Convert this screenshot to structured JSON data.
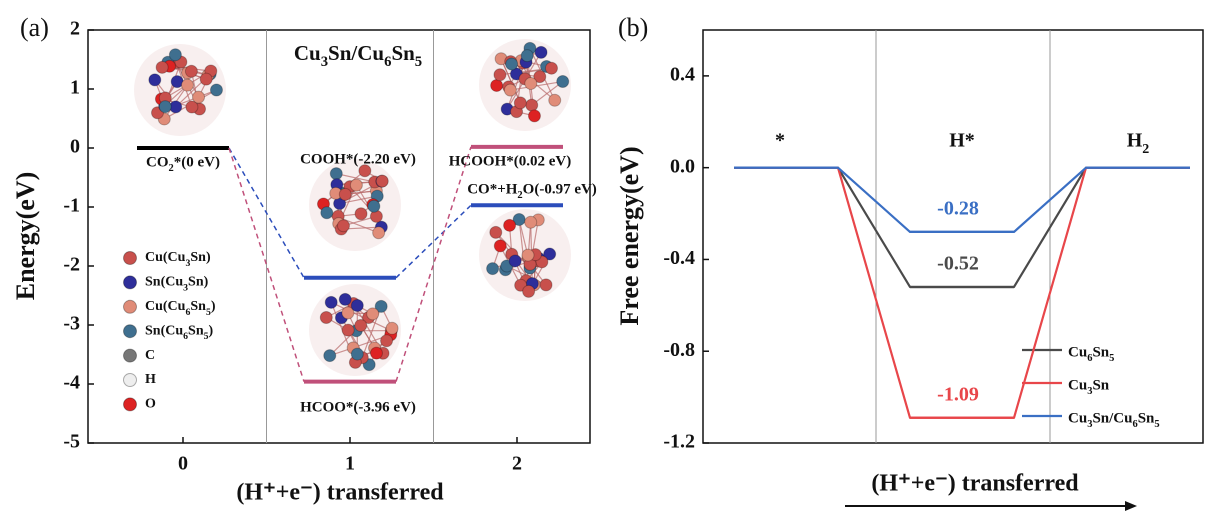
{
  "chart_data": [
    {
      "type": "energy-diagram",
      "panel_label": "(a)",
      "title": "Cu3Sn/Cu6Sn5",
      "x_label": "(H⁺+e⁻) transferred",
      "y_label": "Energy(eV)",
      "categories": [
        "0",
        "1",
        "2"
      ],
      "ylim": [
        -5,
        2
      ],
      "yticks": [
        -5,
        -4,
        -3,
        -2,
        -1,
        0,
        1,
        2
      ],
      "start_color": "#000000",
      "series": [
        {
          "color": "#2b4dbb",
          "values": [
            0,
            -2.2,
            -0.97
          ],
          "value_labels": [
            "CO2*(0 eV)",
            "COOH*(-2.20 eV)",
            "CO*+H2O(-0.97 eV)"
          ]
        },
        {
          "color": "#c0507a",
          "values": [
            0,
            -3.96,
            0.02
          ],
          "value_labels": [
            null,
            "HCOO*(-3.96 eV)",
            "HCOOH*(0.02 eV)"
          ]
        }
      ],
      "atom_legend": [
        {
          "name": "Cu(Cu3Sn)",
          "color": "#c8504c"
        },
        {
          "name": "Sn(Cu3Sn)",
          "color": "#2e2e9a"
        },
        {
          "name": "Cu(Cu6Sn5)",
          "color": "#e08c78"
        },
        {
          "name": "Sn(Cu6Sn5)",
          "color": "#3f6f8f"
        },
        {
          "name": "C",
          "color": "#777777"
        },
        {
          "name": "H",
          "color": "#eeeeee"
        },
        {
          "name": "O",
          "color": "#dd2222"
        }
      ]
    },
    {
      "type": "step-line",
      "panel_label": "(b)",
      "x_label": "(H⁺+e⁻) transferred",
      "y_label": "Free energy(eV)",
      "categories": [
        "*",
        "H*",
        "H2"
      ],
      "ylim": [
        -1.2,
        0.6
      ],
      "yticks": [
        -1.2,
        -0.8,
        -0.4,
        {
          "value": 0,
          "label": "0.0"
        },
        0.4
      ],
      "legend": "lower right",
      "series": [
        {
          "name": "Cu6Sn5",
          "color": "#4a4a4a",
          "values": [
            0,
            -0.52,
            0
          ]
        },
        {
          "name": "Cu3Sn",
          "color": "#e8464a",
          "values": [
            0,
            -1.09,
            0
          ]
        },
        {
          "name": "Cu3Sn/Cu6Sn5",
          "color": "#3a6fc4",
          "values": [
            0,
            -0.28,
            0
          ]
        }
      ]
    }
  ]
}
